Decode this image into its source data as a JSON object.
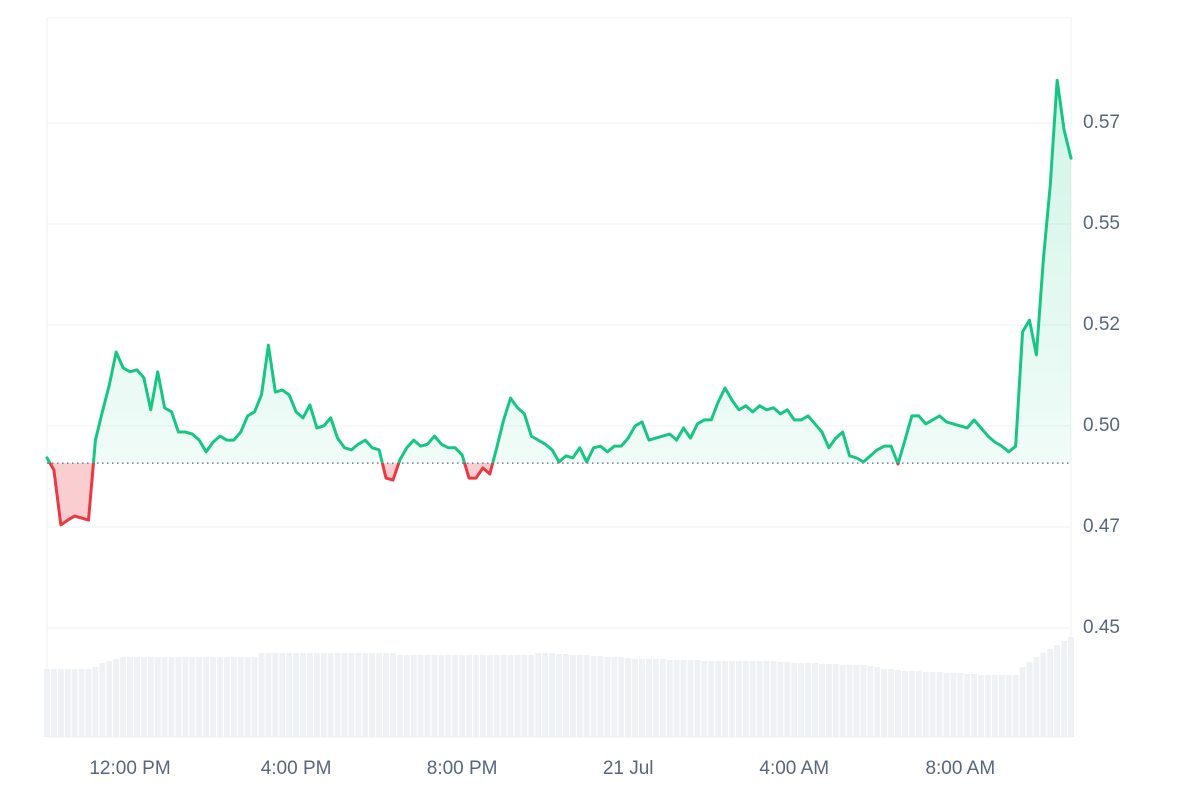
{
  "chart_data": {
    "type": "price-line",
    "categories": [
      null,
      null,
      null,
      null,
      null,
      null,
      null,
      null,
      null,
      null,
      null,
      null,
      "12:00 PM",
      null,
      null,
      null,
      null,
      null,
      null,
      null,
      null,
      null,
      null,
      null,
      null,
      null,
      null,
      null,
      null,
      null,
      null,
      null,
      null,
      null,
      null,
      null,
      "4:00 PM",
      null,
      null,
      null,
      null,
      null,
      null,
      null,
      null,
      null,
      null,
      null,
      null,
      null,
      null,
      null,
      null,
      null,
      null,
      null,
      null,
      null,
      null,
      null,
      "8:00 PM",
      null,
      null,
      null,
      null,
      null,
      null,
      null,
      null,
      null,
      null,
      null,
      null,
      null,
      null,
      null,
      null,
      null,
      null,
      null,
      null,
      null,
      null,
      null,
      "21 Jul",
      null,
      null,
      null,
      null,
      null,
      null,
      null,
      null,
      null,
      null,
      null,
      null,
      null,
      null,
      null,
      null,
      null,
      null,
      null,
      null,
      null,
      null,
      null,
      "4:00 AM",
      null,
      null,
      null,
      null,
      null,
      null,
      null,
      null,
      null,
      null,
      null,
      null,
      null,
      null,
      null,
      null,
      null,
      null,
      null,
      null,
      null,
      null,
      null,
      "8:00 AM",
      null,
      null,
      null,
      null,
      null,
      null,
      null,
      null,
      null,
      null,
      null,
      null,
      null,
      null,
      null,
      null
    ],
    "values": [
      0.4921,
      0.4891,
      0.4755,
      0.4767,
      0.4777,
      0.4772,
      0.4767,
      0.4965,
      0.5035,
      0.5101,
      0.5183,
      0.5144,
      0.5134,
      0.5139,
      0.5119,
      0.504,
      0.5134,
      0.5045,
      0.5035,
      0.4985,
      0.4985,
      0.498,
      0.4965,
      0.4936,
      0.496,
      0.4975,
      0.4965,
      0.4965,
      0.4985,
      0.5025,
      0.5035,
      0.5077,
      0.52,
      0.5084,
      0.5089,
      0.5077,
      0.5035,
      0.502,
      0.5052,
      0.4995,
      0.5,
      0.502,
      0.497,
      0.4946,
      0.4941,
      0.4955,
      0.4965,
      0.4946,
      0.4941,
      0.4871,
      0.4866,
      0.4916,
      0.4946,
      0.4965,
      0.495,
      0.4955,
      0.4975,
      0.4955,
      0.4946,
      0.4946,
      0.4928,
      0.4871,
      0.4871,
      0.4896,
      0.4881,
      0.4946,
      0.5015,
      0.5069,
      0.5045,
      0.503,
      0.4975,
      0.4965,
      0.4955,
      0.4941,
      0.4911,
      0.4926,
      0.4921,
      0.4946,
      0.4911,
      0.4946,
      0.495,
      0.4936,
      0.495,
      0.495,
      0.497,
      0.5,
      0.501,
      0.4965,
      0.497,
      0.4975,
      0.498,
      0.4965,
      0.4995,
      0.497,
      0.5005,
      0.5015,
      0.5015,
      0.5059,
      0.5094,
      0.5064,
      0.504,
      0.505,
      0.5035,
      0.505,
      0.504,
      0.5045,
      0.503,
      0.504,
      0.5015,
      0.5015,
      0.5025,
      0.5005,
      0.4985,
      0.4946,
      0.497,
      0.4985,
      0.4926,
      0.4921,
      0.4911,
      0.4926,
      0.4941,
      0.495,
      0.495,
      0.4906,
      0.4965,
      0.5025,
      0.5025,
      0.5005,
      0.5015,
      0.5025,
      0.501,
      0.5005,
      0.5,
      0.4995,
      0.5015,
      0.4995,
      0.4975,
      0.496,
      0.495,
      0.4936,
      0.495,
      0.5233,
      0.5262,
      0.5176,
      0.5411,
      0.5596,
      0.5856,
      0.5733,
      0.5663
    ],
    "volume": [
      68,
      68,
      68,
      68,
      68,
      68,
      68,
      70,
      74,
      76,
      78,
      80,
      80,
      80,
      80,
      80,
      80,
      80,
      80,
      80,
      80,
      80,
      80,
      80,
      80,
      80,
      80,
      80,
      80,
      80,
      80,
      84,
      84,
      84,
      84,
      84,
      84,
      84,
      84,
      84,
      84,
      84,
      84,
      84,
      84,
      84,
      84,
      84,
      84,
      84,
      84,
      82,
      82,
      82,
      82,
      82,
      82,
      82,
      82,
      82,
      82,
      82,
      82,
      82,
      82,
      82,
      82,
      82,
      82,
      82,
      82,
      84,
      84,
      84,
      83,
      83,
      82,
      82,
      82,
      81,
      81,
      80,
      80,
      80,
      79,
      78,
      78,
      78,
      78,
      78,
      77,
      77,
      77,
      77,
      77,
      76,
      76,
      76,
      76,
      76,
      76,
      76,
      76,
      76,
      76,
      76,
      75,
      75,
      74,
      74,
      74,
      74,
      73,
      73,
      73,
      72,
      72,
      72,
      72,
      71,
      70,
      68,
      68,
      67,
      66,
      66,
      66,
      65,
      65,
      65,
      64,
      64,
      64,
      63,
      63,
      62,
      62,
      62,
      62,
      62,
      62,
      70,
      75,
      80,
      84,
      88,
      92,
      96,
      100
    ],
    "baseline": 0.4908,
    "up_color": "#16c784",
    "down_color": "#ea3943",
    "volume_color": "#eff2f5",
    "ylim": [
      0.423,
      0.601
    ],
    "yticks": [
      0.45,
      {
        "value": 0.475,
        "label": "0.47"
      },
      {
        "value": 0.5,
        "label": "0.50"
      },
      {
        "value": 0.525,
        "label": "0.52"
      },
      0.55,
      {
        "value": 0.575,
        "label": "0.57"
      }
    ],
    "grid": true
  }
}
